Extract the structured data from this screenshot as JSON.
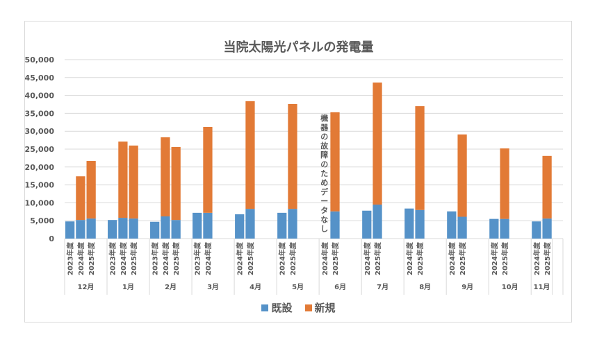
{
  "chart_data": {
    "type": "bar",
    "stacked": true,
    "title": "当院太陽光パネルの発電量",
    "ylim": [
      0,
      50000
    ],
    "yticks": [
      "0",
      "5,000",
      "10,000",
      "15,000",
      "20,000",
      "25,000",
      "30,000",
      "35,000",
      "40,000",
      "45,000",
      "50,000"
    ],
    "grid": true,
    "legend_position": "bottom",
    "colors": {
      "既設": "#5592c8",
      "新規": "#e27a36"
    },
    "series_names": [
      "既設",
      "新規"
    ],
    "groups": [
      {
        "month": "12月",
        "bars": [
          {
            "year": "2023年度",
            "既設": 4800,
            "新規": 0
          },
          {
            "year": "2024年度",
            "既設": 5200,
            "新規": 12200
          },
          {
            "year": "2025年度",
            "既設": 5600,
            "新規": 16100
          }
        ]
      },
      {
        "month": "1月",
        "bars": [
          {
            "year": "2023年度",
            "既設": 5200,
            "新規": 0
          },
          {
            "year": "2024年度",
            "既設": 5800,
            "新規": 21300
          },
          {
            "year": "2025年度",
            "既設": 5600,
            "新規": 20400
          }
        ]
      },
      {
        "month": "2月",
        "bars": [
          {
            "year": "2023年度",
            "既設": 4700,
            "新規": 0
          },
          {
            "year": "2024年度",
            "既設": 6200,
            "新規": 22100
          },
          {
            "year": "2025年度",
            "既設": 5200,
            "新規": 20400
          }
        ]
      },
      {
        "month": "3月",
        "bars": [
          {
            "year": "2023年度",
            "既設": 7200,
            "新規": 0
          },
          {
            "year": "2024年度",
            "既設": 7200,
            "新規": 24000
          }
        ]
      },
      {
        "month": "4月",
        "bars": [
          {
            "year": "2024年度",
            "既設": 6800,
            "新規": 0
          },
          {
            "year": "2025年度",
            "既設": 8300,
            "新規": 30100
          }
        ]
      },
      {
        "month": "5月",
        "bars": [
          {
            "year": "2024年度",
            "既設": 7200,
            "新規": 0
          },
          {
            "year": "2025年度",
            "既設": 8300,
            "新規": 29300
          }
        ]
      },
      {
        "month": "6月",
        "bars": [
          {
            "year": "2024年度",
            "既設": null,
            "新規": null
          },
          {
            "year": "2025年度",
            "既設": 7600,
            "新規": 27700
          }
        ]
      },
      {
        "month": "7月",
        "bars": [
          {
            "year": "2024年度",
            "既設": 7800,
            "新規": 0
          },
          {
            "year": "2025年度",
            "既設": 9500,
            "新規": 34100
          }
        ]
      },
      {
        "month": "8月",
        "bars": [
          {
            "year": "2024年度",
            "既設": 8400,
            "新規": 0
          },
          {
            "year": "2025年度",
            "既設": 8000,
            "新規": 29000
          }
        ]
      },
      {
        "month": "9月",
        "bars": [
          {
            "year": "2024年度",
            "既設": 7600,
            "新規": 0
          },
          {
            "year": "2025年度",
            "既設": 6100,
            "新規": 23000
          }
        ]
      },
      {
        "month": "10月",
        "bars": [
          {
            "year": "2024年度",
            "既設": 5500,
            "新規": 0
          },
          {
            "year": "2025年度",
            "既設": 5500,
            "新規": 19700
          }
        ]
      },
      {
        "month": "11月",
        "bars": [
          {
            "year": "2024年度",
            "既設": 4800,
            "新規": 0
          },
          {
            "year": "2025年度",
            "既設": 5600,
            "新規": 17500
          }
        ]
      }
    ],
    "annotation": "機器の故障のためデータなし"
  }
}
